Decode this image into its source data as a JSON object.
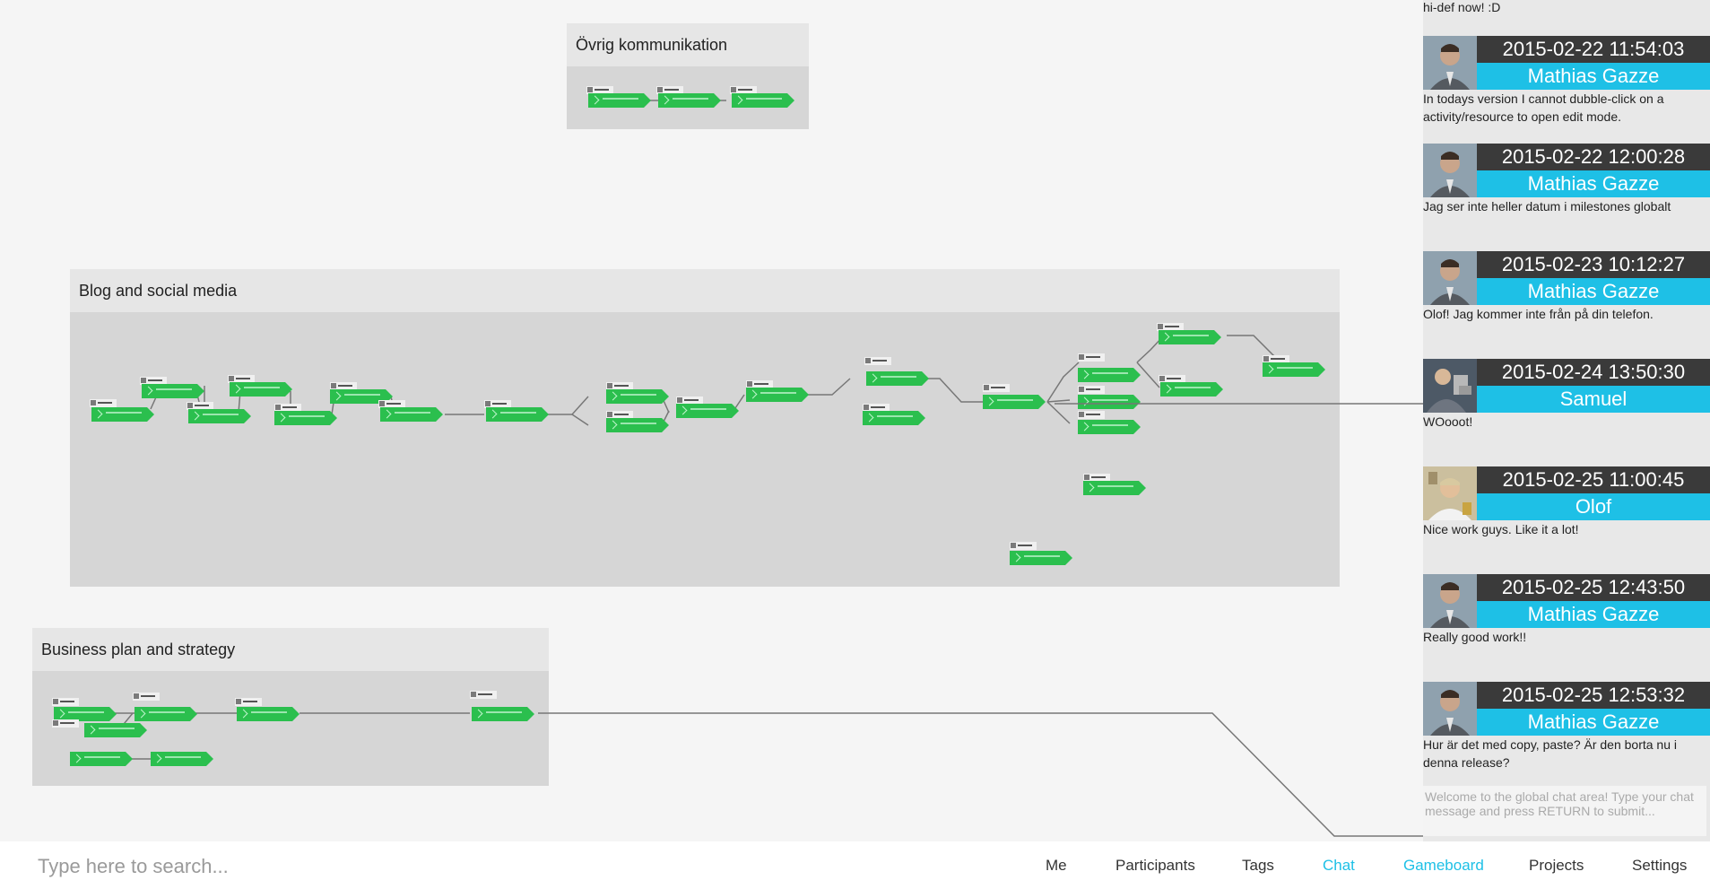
{
  "board": {
    "groups": [
      {
        "title": "Övrig kommunikation"
      },
      {
        "title": "Blog and social media"
      },
      {
        "title": "Business plan and strategy"
      }
    ]
  },
  "chat": {
    "intro": "hi-def now! :D",
    "messages": [
      {
        "time": "2015-02-22 11:54:03",
        "author": "Mathias Gazze",
        "text": "In todays version I cannot dubble-click on a activity/resource to open edit mode."
      },
      {
        "time": "2015-02-22 12:00:28",
        "author": "Mathias Gazze",
        "text": "Jag ser inte heller datum i milestones globalt"
      },
      {
        "time": "2015-02-23 10:12:27",
        "author": "Mathias Gazze",
        "text": "Olof! Jag kommer inte från på din telefon."
      },
      {
        "time": "2015-02-24 13:50:30",
        "author": "Samuel",
        "text": "WOooot!"
      },
      {
        "time": "2015-02-25 11:00:45",
        "author": "Olof",
        "text": "Nice work guys. Like it a lot!"
      },
      {
        "time": "2015-02-25 12:43:50",
        "author": "Mathias Gazze",
        "text": "Really good work!!"
      },
      {
        "time": "2015-02-25 12:53:32",
        "author": "Mathias Gazze",
        "text": "Hur är det med copy, paste? Är den borta nu i denna release?"
      }
    ],
    "input_placeholder": "Welcome to the global chat area! Type your chat message and press RETURN to submit..."
  },
  "search": {
    "placeholder": "Type here to search..."
  },
  "nav": {
    "items": [
      {
        "label": "Me",
        "active": false
      },
      {
        "label": "Participants",
        "active": false
      },
      {
        "label": "Tags",
        "active": false
      },
      {
        "label": "Chat",
        "active": true
      },
      {
        "label": "Gameboard",
        "active": true
      },
      {
        "label": "Projects",
        "active": false
      },
      {
        "label": "Settings",
        "active": false
      }
    ]
  },
  "colors": {
    "accent": "#1ec0e6",
    "activity": "#2bbf4e",
    "timestamp_bg": "#3a3a3a"
  }
}
